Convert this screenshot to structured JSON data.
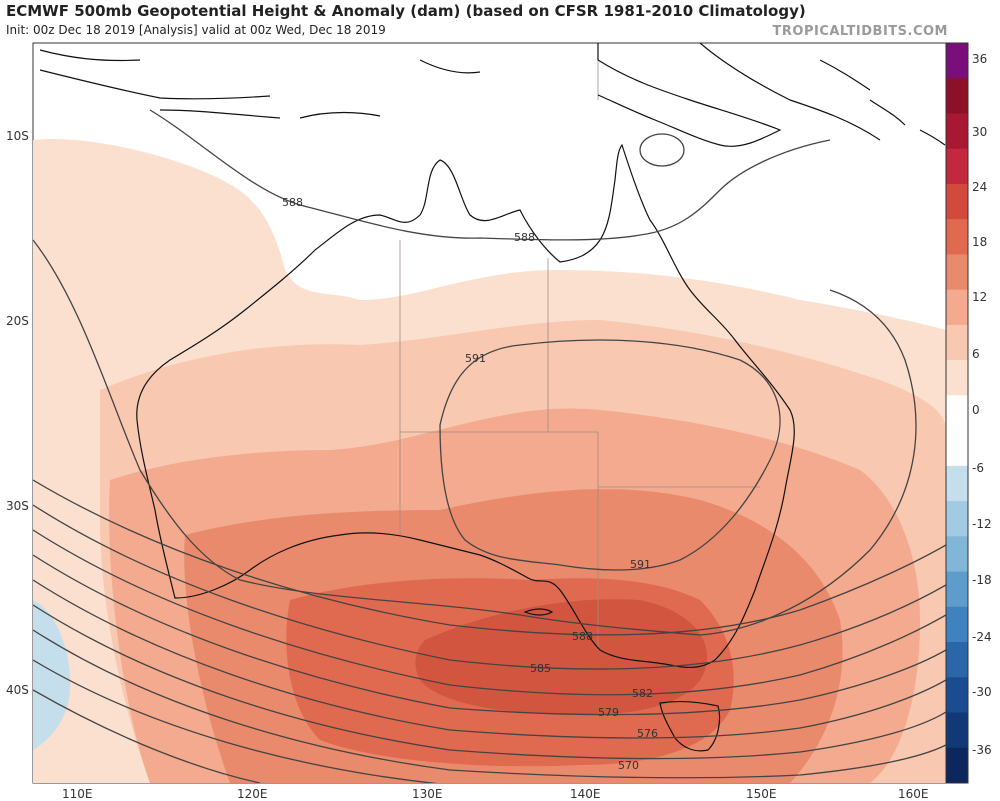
{
  "header": {
    "title": "ECMWF 500mb Geopotential Height & Anomaly (dam) (based on CFSR 1981-2010 Climatology)",
    "subtitle": "Init: 00z Dec 18 2019   [Analysis]   valid at 00z Wed, Dec 18 2019",
    "brand": "TROPICALTIDBITS.COM"
  },
  "map": {
    "region": "Australia",
    "lat_labels": [
      "10S",
      "20S",
      "30S",
      "40S"
    ],
    "lon_labels": [
      "110E",
      "120E",
      "130E",
      "140E",
      "150E",
      "160E"
    ],
    "contour_labels": [
      "588",
      "588",
      "591",
      "591",
      "588",
      "585",
      "582",
      "579",
      "576",
      "570"
    ],
    "anomaly_max_region": "south-east Australia / Bass Strait",
    "negative_anomaly_region": "far south-west corner"
  },
  "colorbar": {
    "labels": [
      "36",
      "30",
      "24",
      "18",
      "12",
      "6",
      "0",
      "-6",
      "-12",
      "-18",
      "-24",
      "-30",
      "-36"
    ],
    "colors": [
      "#7a0f7a",
      "#8c1028",
      "#a81832",
      "#c2283e",
      "#d24a3c",
      "#e06a50",
      "#ea8a6c",
      "#f3aa8e",
      "#f8c8b0",
      "#fbe0d0",
      "#ffffff",
      "#ffffff",
      "#c4deec",
      "#a2cae2",
      "#82b6d8",
      "#5d9ccb",
      "#3f82bd",
      "#2a66a8",
      "#1b4c8f",
      "#113977",
      "#0b275e"
    ]
  }
}
